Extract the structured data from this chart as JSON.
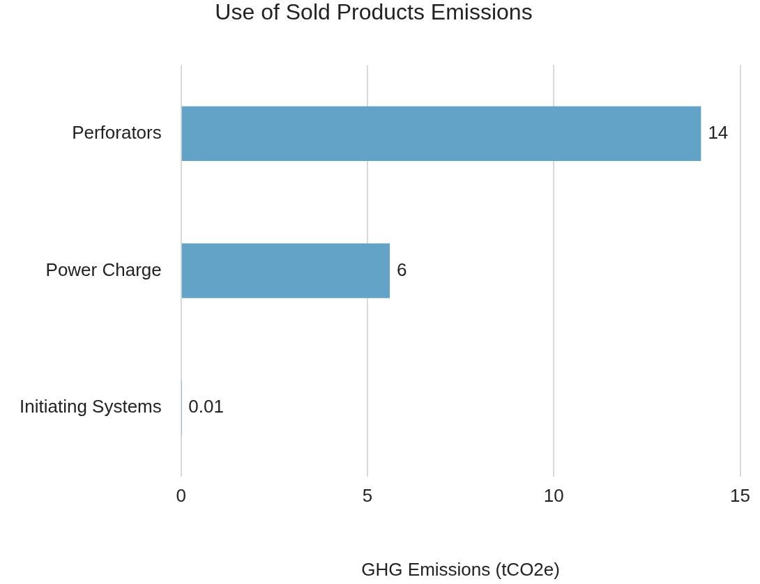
{
  "chart_data": {
    "type": "bar",
    "orientation": "horizontal",
    "title": "Use of Sold Products Emissions",
    "xlabel": "GHG Emissions (tCO2e)",
    "categories": [
      "Perforators",
      "Power Charge",
      "Initiating Systems"
    ],
    "values": [
      13.95,
      5.6,
      0.01
    ],
    "value_labels": [
      "14",
      "6",
      "0.01"
    ],
    "color": "#62a3c7",
    "xlim": [
      0,
      15
    ],
    "xticks": [
      0,
      5,
      10,
      15
    ],
    "grid": "x",
    "legend": false
  }
}
